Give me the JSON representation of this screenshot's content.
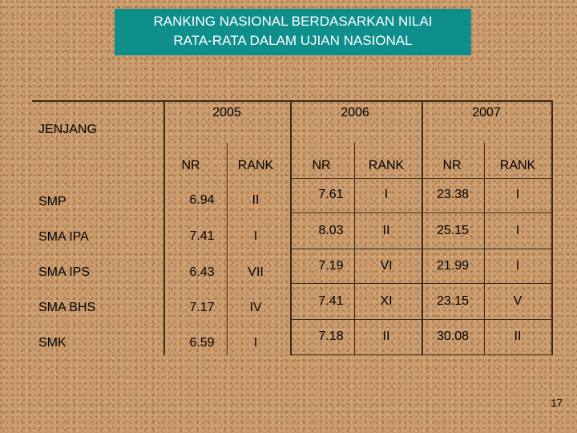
{
  "title": {
    "line1": "RANKING NASIONAL  BERDASARKAN NILAI",
    "line2": "RATA-RATA DALAM UJIAN NASIONAL"
  },
  "table": {
    "row_header": "JENJANG",
    "years": [
      "2005",
      "2006",
      "2007"
    ],
    "sub_headers": [
      "NR",
      "RANK",
      "NR",
      "RANK",
      "NR",
      "RANK"
    ],
    "rows": [
      {
        "level": "SMP",
        "values": [
          "6.94",
          "II",
          "7.61",
          "I",
          "23.38",
          "I"
        ]
      },
      {
        "level": "SMA IPA",
        "values": [
          "7.41",
          "I",
          "8.03",
          "II",
          "25.15",
          "I"
        ]
      },
      {
        "level": "SMA IPS",
        "values": [
          "6.43",
          "VII",
          "7.19",
          "VI",
          "21.99",
          "I"
        ]
      },
      {
        "level": "SMA BHS",
        "values": [
          "7.17",
          "IV",
          "7.41",
          "XI",
          "23.15",
          "V"
        ]
      },
      {
        "level": "SMK",
        "values": [
          "6.59",
          "I",
          "7.18",
          "II",
          "30.08",
          "II"
        ]
      }
    ]
  },
  "page_number": "17"
}
